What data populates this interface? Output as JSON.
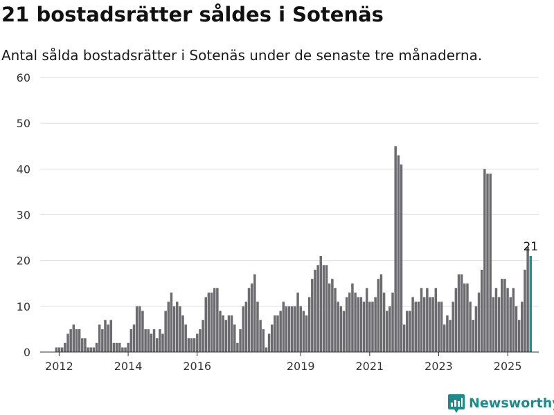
{
  "title": "21 bostadsrätter såldes i Sotenäs",
  "subtitle": "Antal sålda bostadsrätter i Sotenäs under de senaste tre månaderna.",
  "brand": {
    "name": "Newsworthy",
    "icon": "newsworthy-logo-icon",
    "color": "#1f8a8a"
  },
  "colors": {
    "bar": "#6b6b70",
    "highlight": "#1a9490",
    "grid": "#dddddd",
    "axis": "#333333"
  },
  "chart_data": {
    "type": "bar",
    "ylim": [
      0,
      60
    ],
    "yticks": [
      "0",
      "10",
      "20",
      "30",
      "40",
      "50",
      "60"
    ],
    "xlim": [
      2011.45,
      2025.9
    ],
    "xticks": [
      {
        "x": 2012,
        "label": "2012"
      },
      {
        "x": 2014,
        "label": "2014"
      },
      {
        "x": 2016,
        "label": "2016"
      },
      {
        "x": 2019,
        "label": "2019"
      },
      {
        "x": 2021,
        "label": "2021"
      },
      {
        "x": 2023,
        "label": "2023"
      },
      {
        "x": 2025,
        "label": "2025"
      }
    ],
    "start": 2011.92,
    "step": 0.0833,
    "values": [
      1,
      1,
      1,
      2,
      4,
      5,
      6,
      5,
      5,
      3,
      3,
      1,
      1,
      1,
      2,
      6,
      5,
      7,
      6,
      7,
      2,
      2,
      2,
      1,
      1,
      2,
      5,
      6,
      10,
      10,
      9,
      5,
      5,
      4,
      5,
      3,
      5,
      4,
      9,
      11,
      13,
      10,
      11,
      10,
      8,
      6,
      3,
      3,
      3,
      4,
      5,
      7,
      12,
      13,
      13,
      14,
      14,
      9,
      8,
      7,
      8,
      8,
      6,
      2,
      5,
      10,
      11,
      14,
      15,
      17,
      11,
      7,
      5,
      1,
      4,
      6,
      8,
      8,
      9,
      11,
      10,
      10,
      10,
      10,
      13,
      10,
      9,
      8,
      12,
      16,
      18,
      19,
      21,
      19,
      19,
      15,
      16,
      14,
      11,
      10,
      9,
      12,
      13,
      15,
      13,
      12,
      12,
      11,
      14,
      11,
      11,
      12,
      16,
      17,
      13,
      9,
      10,
      13,
      45,
      43,
      41,
      6,
      9,
      9,
      12,
      11,
      11,
      14,
      12,
      14,
      12,
      12,
      14,
      11,
      11,
      6,
      8,
      7,
      11,
      14,
      17,
      17,
      15,
      15,
      11,
      7,
      10,
      13,
      18,
      40,
      39,
      39,
      12,
      14,
      12,
      16,
      16,
      14,
      12,
      14,
      10,
      7,
      11,
      18,
      23,
      21
    ],
    "highlight_index": 165,
    "label": "21"
  }
}
